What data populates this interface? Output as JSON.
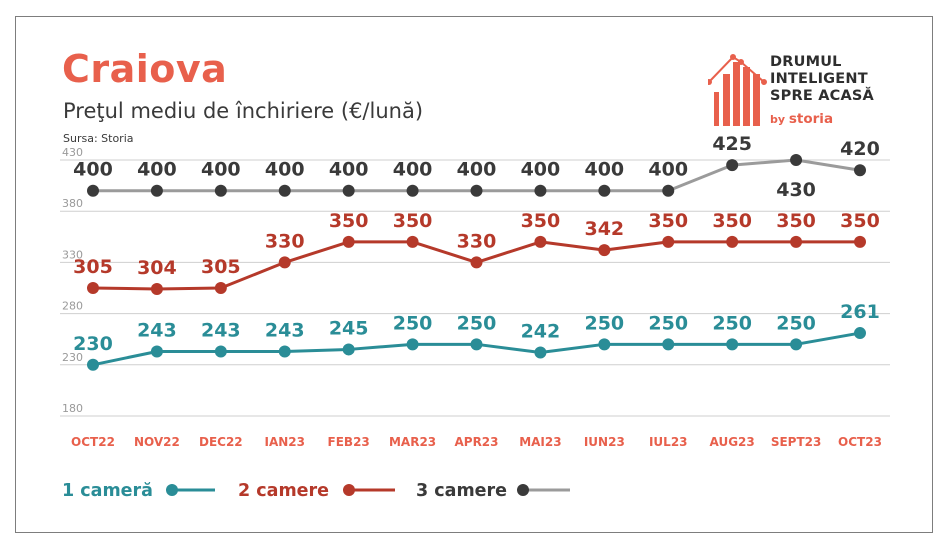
{
  "header": {
    "city": "Craiova",
    "subtitle": "Preţul mediu de închiriere (€/lună)",
    "source": "Sursa: Storia"
  },
  "brand": {
    "line1": "DRUMUL",
    "line2": "INTELIGENT",
    "line3": "SPRE ACASĂ",
    "by": "by",
    "name": "storia",
    "color": "#e8604c"
  },
  "chart_data": {
    "type": "line",
    "categories": [
      "OCT22",
      "NOV22",
      "DEC22",
      "IAN23",
      "FEB23",
      "MAR23",
      "APR23",
      "MAI23",
      "IUN23",
      "IUL23",
      "AUG23",
      "SEPT23",
      "OCT23"
    ],
    "ylim": [
      180,
      430
    ],
    "yticks": [
      430,
      380,
      330,
      280,
      230,
      180
    ],
    "grid": true,
    "legend_position": "bottom-left",
    "series": [
      {
        "name": "1 cameră",
        "color": "#2a8d97",
        "values": [
          230,
          243,
          243,
          243,
          245,
          250,
          250,
          242,
          250,
          250,
          250,
          250,
          261
        ]
      },
      {
        "name": "2 camere",
        "color": "#b5392a",
        "values": [
          305,
          304,
          305,
          330,
          350,
          350,
          330,
          350,
          342,
          350,
          350,
          350,
          350
        ]
      },
      {
        "name": "3 camere",
        "color": "#3a3a3a",
        "values": [
          400,
          400,
          400,
          400,
          400,
          400,
          400,
          400,
          400,
          400,
          425,
          430,
          420
        ]
      }
    ],
    "colors": {
      "category_labels": "#e8604c",
      "tick_labels": "#9a9a9a",
      "grid": "#cfcfcf",
      "series3_line": "#9b9b9b"
    }
  }
}
